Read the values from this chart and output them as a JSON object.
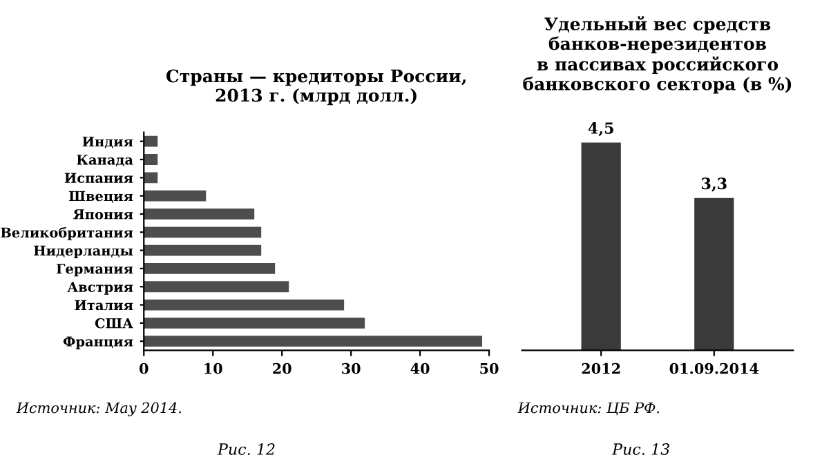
{
  "chart_data": [
    {
      "type": "bar",
      "orientation": "horizontal",
      "title": "Страны — кредиторы России,\n2013 г. (млрд долл.)",
      "categories": [
        "Индия",
        "Канада",
        "Испания",
        "Швеция",
        "Япония",
        "Великобритания",
        "Нидерланды",
        "Германия",
        "Австрия",
        "Италия",
        "США",
        "Франция"
      ],
      "values": [
        2,
        2,
        2,
        9,
        16,
        17,
        17,
        19,
        21,
        29,
        32,
        49
      ],
      "color": "#4d4d4d",
      "xlim": [
        0,
        50
      ],
      "xticks": [
        0,
        10,
        20,
        30,
        40,
        50
      ],
      "grid": false,
      "annotations": [
        "Источник: May 2014.",
        "Рис. 12"
      ]
    },
    {
      "type": "bar",
      "title": "Удельный вес средств\nбанков-нерезидентов\nв пассивах российского\nбанковского сектора (в %)",
      "categories": [
        "2012",
        "01.09.2014"
      ],
      "values": [
        4.5,
        3.3
      ],
      "value_labels": [
        "4,5",
        "3,3"
      ],
      "color": "#3a3a3a",
      "tick_labels": "x",
      "grid": false,
      "annotations": [
        "Источник: ЦБ РФ.",
        "Рис. 13"
      ]
    }
  ]
}
